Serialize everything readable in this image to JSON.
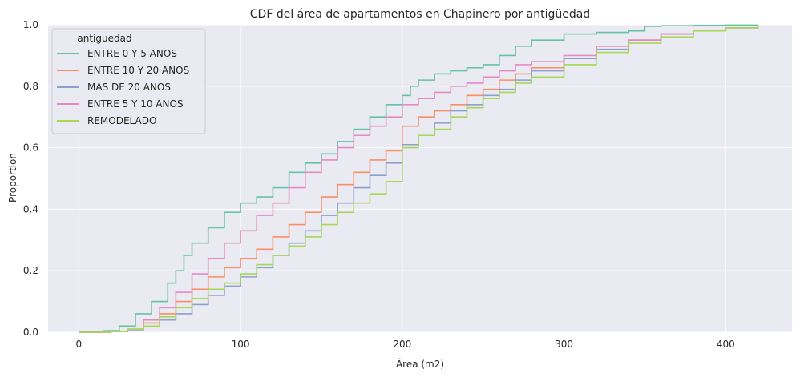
{
  "chart_data": {
    "type": "line",
    "title": "CDF del área de apartamentos en Chapinero por antigüedad",
    "xlabel": "Área (m2)",
    "ylabel": "Proportion",
    "xlim": [
      -19,
      441
    ],
    "ylim": [
      0,
      1
    ],
    "x_ticks": [
      0,
      100,
      200,
      300,
      400
    ],
    "y_ticks": [
      0.0,
      0.2,
      0.4,
      0.6,
      0.8,
      1.0
    ],
    "x_tick_labels": [
      "0",
      "100",
      "200",
      "300",
      "400"
    ],
    "y_tick_labels": [
      "0.0",
      "0.2",
      "0.4",
      "0.6",
      "0.8",
      "1.0"
    ],
    "grid": true,
    "legend": {
      "title": "antiguedad",
      "placement": "top-left"
    },
    "colors": {
      "background": "#eaeaf2",
      "grid": "#ffffff"
    },
    "series": [
      {
        "name": "ENTRE 0 Y 5 ANOS",
        "color": "#66c2a5",
        "x": [
          0,
          15,
          25,
          35,
          45,
          55,
          60,
          65,
          70,
          80,
          90,
          100,
          110,
          120,
          130,
          140,
          150,
          160,
          170,
          180,
          190,
          200,
          205,
          210,
          220,
          230,
          240,
          250,
          260,
          270,
          280,
          300,
          320,
          340,
          350,
          360,
          380,
          400,
          420
        ],
        "y": [
          0,
          0.005,
          0.02,
          0.06,
          0.1,
          0.16,
          0.2,
          0.25,
          0.29,
          0.34,
          0.39,
          0.42,
          0.44,
          0.47,
          0.52,
          0.55,
          0.58,
          0.62,
          0.66,
          0.7,
          0.74,
          0.77,
          0.8,
          0.82,
          0.84,
          0.85,
          0.86,
          0.87,
          0.9,
          0.93,
          0.95,
          0.97,
          0.975,
          0.98,
          0.995,
          0.997,
          0.998,
          0.999,
          1.0
        ]
      },
      {
        "name": "ENTRE 10 Y 20 ANOS",
        "color": "#fc8d62",
        "x": [
          0,
          20,
          30,
          40,
          50,
          60,
          70,
          80,
          90,
          100,
          110,
          120,
          130,
          140,
          150,
          160,
          170,
          180,
          190,
          200,
          210,
          220,
          230,
          240,
          250,
          260,
          270,
          280,
          300,
          320,
          340,
          360,
          380,
          400,
          420
        ],
        "y": [
          0,
          0.002,
          0.01,
          0.03,
          0.06,
          0.1,
          0.14,
          0.18,
          0.21,
          0.24,
          0.27,
          0.31,
          0.35,
          0.39,
          0.44,
          0.48,
          0.52,
          0.56,
          0.59,
          0.67,
          0.7,
          0.72,
          0.74,
          0.77,
          0.79,
          0.82,
          0.84,
          0.86,
          0.89,
          0.93,
          0.95,
          0.97,
          0.98,
          0.99,
          1.0
        ]
      },
      {
        "name": "MAS DE 20 ANOS",
        "color": "#8da0cb",
        "x": [
          0,
          20,
          30,
          40,
          50,
          60,
          70,
          80,
          90,
          100,
          110,
          120,
          130,
          140,
          150,
          160,
          170,
          180,
          190,
          200,
          210,
          220,
          230,
          240,
          250,
          260,
          270,
          280,
          300,
          320,
          340,
          360,
          380,
          400,
          420
        ],
        "y": [
          0,
          0.002,
          0.008,
          0.02,
          0.04,
          0.06,
          0.09,
          0.12,
          0.15,
          0.18,
          0.21,
          0.25,
          0.29,
          0.33,
          0.38,
          0.42,
          0.47,
          0.51,
          0.55,
          0.61,
          0.64,
          0.68,
          0.72,
          0.74,
          0.77,
          0.79,
          0.82,
          0.85,
          0.89,
          0.92,
          0.95,
          0.97,
          0.98,
          0.99,
          1.0
        ]
      },
      {
        "name": "ENTRE 5 Y 10 ANOS",
        "color": "#e78ac3",
        "x": [
          0,
          20,
          30,
          40,
          50,
          60,
          70,
          80,
          90,
          100,
          110,
          120,
          130,
          140,
          150,
          160,
          170,
          180,
          190,
          200,
          210,
          220,
          230,
          240,
          250,
          260,
          270,
          280,
          300,
          320,
          340,
          360,
          380,
          400,
          420
        ],
        "y": [
          0,
          0.003,
          0.01,
          0.04,
          0.08,
          0.13,
          0.19,
          0.24,
          0.29,
          0.33,
          0.38,
          0.42,
          0.47,
          0.52,
          0.56,
          0.6,
          0.64,
          0.67,
          0.7,
          0.74,
          0.76,
          0.78,
          0.8,
          0.81,
          0.83,
          0.85,
          0.87,
          0.88,
          0.9,
          0.93,
          0.95,
          0.97,
          0.98,
          0.99,
          1.0
        ]
      },
      {
        "name": "REMODELADO",
        "color": "#a6d854",
        "x": [
          0,
          20,
          30,
          40,
          50,
          60,
          70,
          80,
          90,
          100,
          110,
          120,
          130,
          140,
          150,
          160,
          170,
          180,
          190,
          192,
          200,
          210,
          220,
          230,
          240,
          250,
          260,
          270,
          280,
          300,
          320,
          340,
          360,
          380,
          400,
          420
        ],
        "y": [
          0,
          0.002,
          0.01,
          0.02,
          0.05,
          0.08,
          0.11,
          0.14,
          0.16,
          0.19,
          0.22,
          0.25,
          0.28,
          0.31,
          0.35,
          0.39,
          0.42,
          0.45,
          0.49,
          0.49,
          0.6,
          0.64,
          0.66,
          0.7,
          0.73,
          0.76,
          0.78,
          0.81,
          0.83,
          0.87,
          0.91,
          0.94,
          0.96,
          0.98,
          0.99,
          1.0
        ]
      }
    ]
  }
}
